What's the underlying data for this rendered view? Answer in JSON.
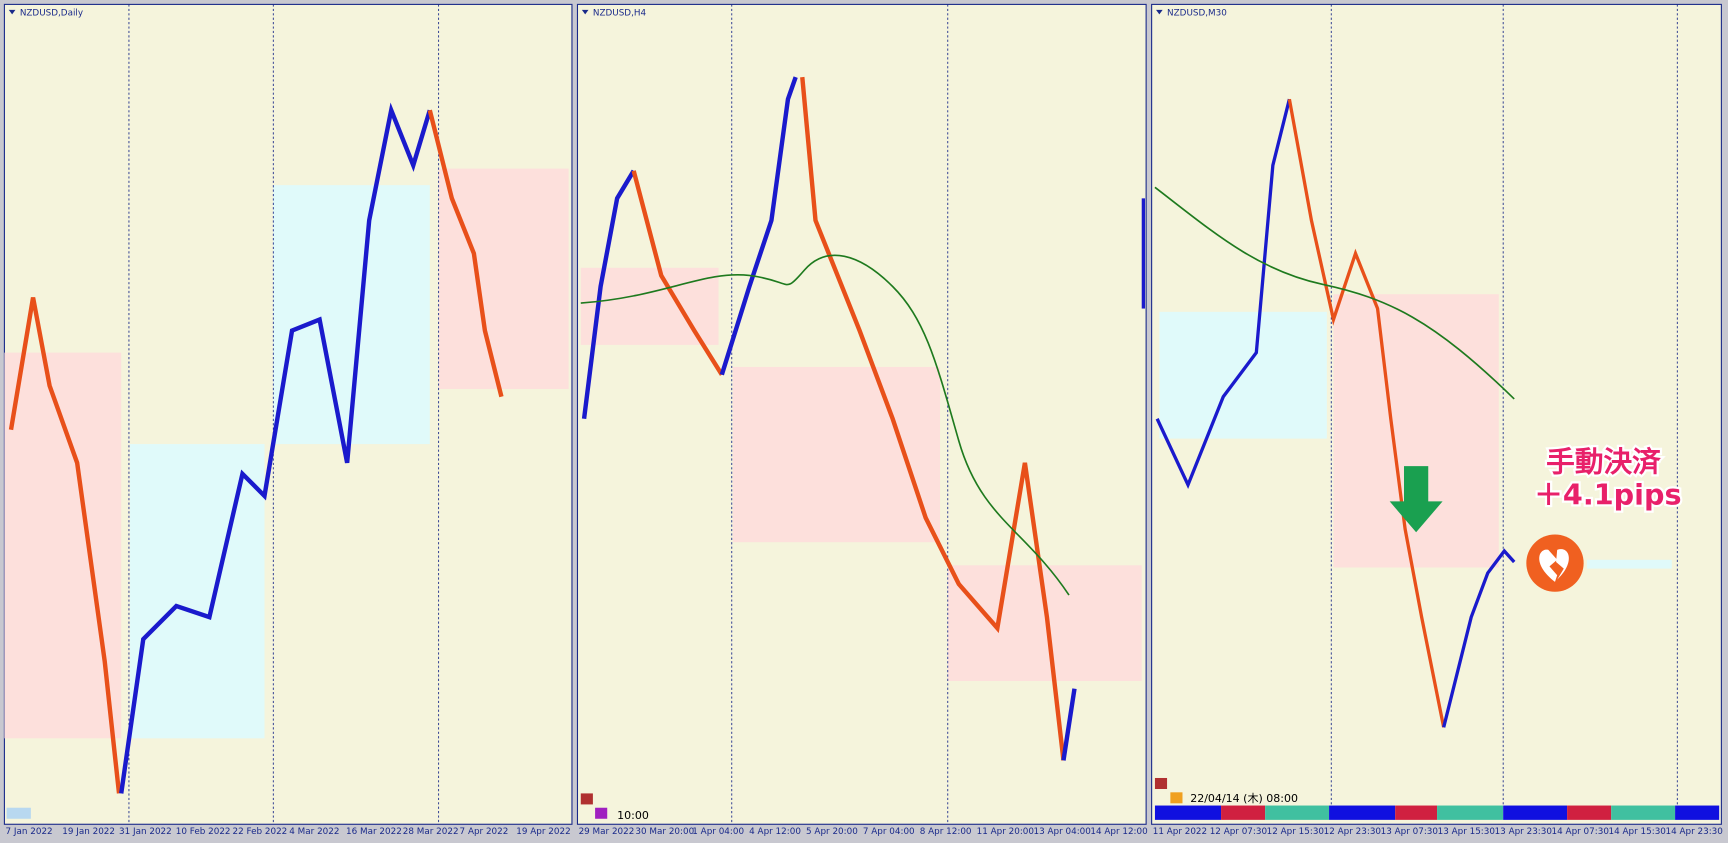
{
  "panels": [
    {
      "title": "NZDUSD,Daily",
      "x_labels": [
        "7 Jan 2022",
        "19 Jan 2022",
        "31 Jan 2022",
        "10 Feb 2022",
        "22 Feb 2022",
        "4 Mar 2022",
        "16 Mar 2022",
        "28 Mar 2022",
        "7 Apr 2022",
        "19 Apr 2022"
      ]
    },
    {
      "title": "NZDUSD,H4",
      "x_labels": [
        "29 Mar 2022",
        "30 Mar 20:00",
        "1 Apr 04:00",
        "4 Apr 12:00",
        "5 Apr 20:00",
        "7 Apr 04:00",
        "8 Apr 12:00",
        "11 Apr 20:00",
        "13 Apr 04:00",
        "14 Apr 12:00"
      ],
      "time_label": "10:00"
    },
    {
      "title": "NZDUSD,M30",
      "x_labels": [
        "11 Apr 2022",
        "12 Apr 07:30",
        "12 Apr 15:30",
        "12 Apr 23:30",
        "13 Apr 07:30",
        "13 Apr 15:30",
        "13 Apr 23:30",
        "14 Apr 07:30",
        "14 Apr 15:30",
        "14 Apr 23:30"
      ],
      "time_label": "22/04/14 (木) 08:00"
    }
  ],
  "annotation": {
    "line1": "手動決済",
    "line2": "＋4.1pips"
  }
}
